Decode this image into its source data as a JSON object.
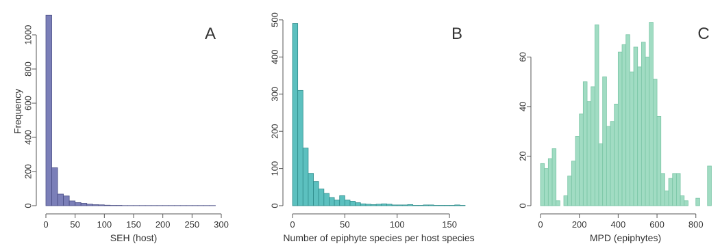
{
  "chart_data": [
    {
      "type": "bar",
      "panel": "A",
      "xlabel": "SEH (host)",
      "ylabel": "Frequency",
      "xlim": [
        0,
        300
      ],
      "ylim": [
        0,
        1120
      ],
      "xticks": [
        0,
        50,
        100,
        150,
        200,
        250,
        300
      ],
      "yticks": [
        0,
        200,
        400,
        600,
        800,
        1000
      ],
      "bin_start": 0,
      "bin_width": 10,
      "values": [
        1115,
        222,
        68,
        57,
        28,
        18,
        14,
        9,
        6,
        5,
        3,
        2,
        2,
        1,
        1,
        1,
        1,
        1,
        1,
        1,
        1,
        1,
        1,
        1,
        1,
        1,
        1,
        1,
        1
      ],
      "color": "#7b7fb8",
      "edge": "#4a4e86"
    },
    {
      "type": "bar",
      "panel": "B",
      "xlabel": "Number of epiphyte species per host species",
      "ylabel": "",
      "xlim": [
        0,
        165
      ],
      "ylim": [
        0,
        500
      ],
      "xticks": [
        0,
        50,
        100,
        150
      ],
      "yticks": [
        0,
        100,
        200,
        300,
        400,
        500
      ],
      "bin_start": 0,
      "bin_width": 5,
      "values": [
        490,
        310,
        155,
        87,
        65,
        45,
        33,
        22,
        15,
        27,
        15,
        12,
        8,
        5,
        4,
        3,
        4,
        5,
        4,
        2,
        2,
        2,
        3,
        1,
        1,
        2,
        2,
        1,
        1,
        1,
        1,
        2,
        1
      ],
      "color": "#5cc0bf",
      "edge": "#2e8c8b"
    },
    {
      "type": "bar",
      "panel": "C",
      "xlabel": "MPD (epiphytes)",
      "ylabel": "",
      "xlim": [
        0,
        875
      ],
      "ylim": [
        0,
        75
      ],
      "xticks": [
        0,
        200,
        400,
        600,
        800
      ],
      "yticks": [
        0,
        20,
        40,
        60
      ],
      "bin_start": 0,
      "bin_width": 20,
      "values": [
        17,
        15,
        19,
        23,
        2,
        0,
        4,
        12,
        18,
        28,
        37,
        50,
        42,
        48,
        73,
        25,
        52,
        32,
        34,
        41,
        62,
        65,
        69,
        54,
        64,
        56,
        66,
        60,
        74,
        51,
        36,
        13,
        6,
        11,
        13,
        13,
        4,
        2,
        0,
        0,
        3,
        0,
        0,
        16
      ],
      "color": "#a1dcc3",
      "edge": "#79c5a5"
    }
  ]
}
